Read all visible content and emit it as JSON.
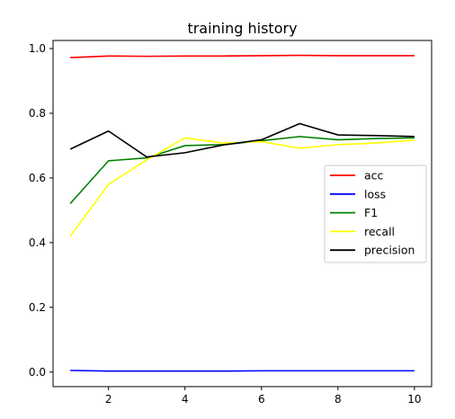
{
  "chart_data": {
    "type": "line",
    "title": "training history",
    "xlabel": "",
    "ylabel": "",
    "x": [
      1,
      2,
      3,
      4,
      5,
      6,
      7,
      8,
      9,
      10
    ],
    "xlim": [
      0.55,
      10.45
    ],
    "ylim": [
      -0.045,
      1.025
    ],
    "xticks": [
      2,
      4,
      6,
      8,
      10
    ],
    "yticks": [
      0.0,
      0.2,
      0.4,
      0.6,
      0.8,
      1.0
    ],
    "grid": false,
    "legend_position": "center-right",
    "series": [
      {
        "name": "acc",
        "color": "#ff0000",
        "values": [
          0.972,
          0.977,
          0.976,
          0.977,
          0.977,
          0.978,
          0.979,
          0.978,
          0.978,
          0.978
        ]
      },
      {
        "name": "loss",
        "color": "#0000ff",
        "values": [
          0.005,
          0.003,
          0.003,
          0.003,
          0.003,
          0.004,
          0.004,
          0.004,
          0.004,
          0.004
        ]
      },
      {
        "name": "F1",
        "color": "#008000",
        "values": [
          0.521,
          0.653,
          0.662,
          0.7,
          0.703,
          0.715,
          0.728,
          0.718,
          0.722,
          0.724
        ]
      },
      {
        "name": "recall",
        "color": "#ffff00",
        "values": [
          0.42,
          0.58,
          0.656,
          0.724,
          0.708,
          0.712,
          0.692,
          0.703,
          0.708,
          0.717
        ]
      },
      {
        "name": "precision",
        "color": "#000000",
        "values": [
          0.689,
          0.745,
          0.665,
          0.678,
          0.702,
          0.718,
          0.768,
          0.733,
          0.731,
          0.728
        ]
      }
    ]
  }
}
